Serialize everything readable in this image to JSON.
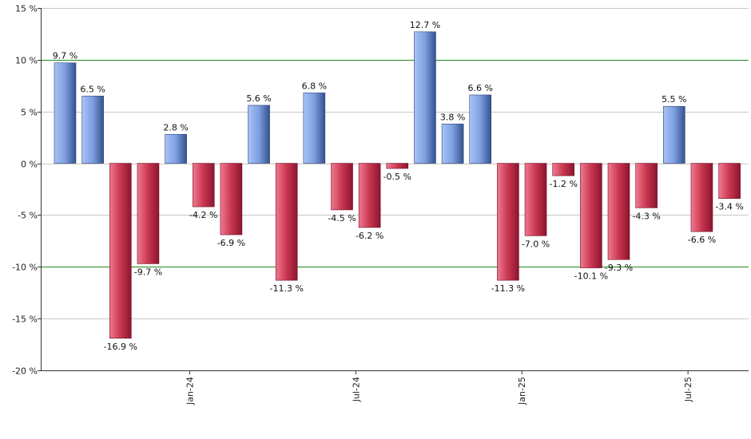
{
  "chart_data": {
    "type": "bar",
    "values": [
      9.7,
      6.5,
      -16.9,
      -9.7,
      2.8,
      -4.2,
      -6.9,
      5.6,
      -11.3,
      6.8,
      -4.5,
      -6.2,
      -0.5,
      12.7,
      3.8,
      6.6,
      -11.3,
      -7.0,
      -1.2,
      -10.1,
      -9.3,
      -4.3,
      5.5,
      -6.6,
      -3.4
    ],
    "data_labels": [
      "9.7 %",
      "6.5 %",
      "-16.9 %",
      "-9.7 %",
      "2.8 %",
      "-4.2 %",
      "-6.9 %",
      "5.6 %",
      "-11.3 %",
      "6.8 %",
      "-4.5 %",
      "-6.2 %",
      "-0.5 %",
      "12.7 %",
      "3.8 %",
      "6.6 %",
      "-11.3 %",
      "-7.0 %",
      "-1.2 %",
      "-10.1 %",
      "-9.3 %",
      "-4.3 %",
      "5.5 %",
      "-6.6 %",
      "-3.4 %"
    ],
    "ylim": [
      -20,
      15
    ],
    "y_ticks": [
      15,
      10,
      5,
      0,
      -5,
      -10,
      -15,
      -20
    ],
    "y_tick_labels": [
      "15 %",
      "10 %",
      "5 %",
      "0 %",
      "-5 %",
      "-10 %",
      "-15 %",
      "-20 %"
    ],
    "reference_lines": [
      10,
      -10
    ],
    "x_tick_labels": [
      {
        "label": "Jan-24",
        "after_index": 4
      },
      {
        "label": "Jul-24",
        "after_index": 10
      },
      {
        "label": "Jan-25",
        "after_index": 16
      },
      {
        "label": "Jul-25",
        "after_index": 22
      }
    ],
    "grid": true,
    "colors": {
      "positive_light": "#a9c4f5",
      "positive_dark": "#34528f",
      "negative_light": "#f07a90",
      "negative_dark": "#8c1530",
      "reference_line": "#1f8a1f",
      "grid": "#c8c8c8"
    }
  }
}
